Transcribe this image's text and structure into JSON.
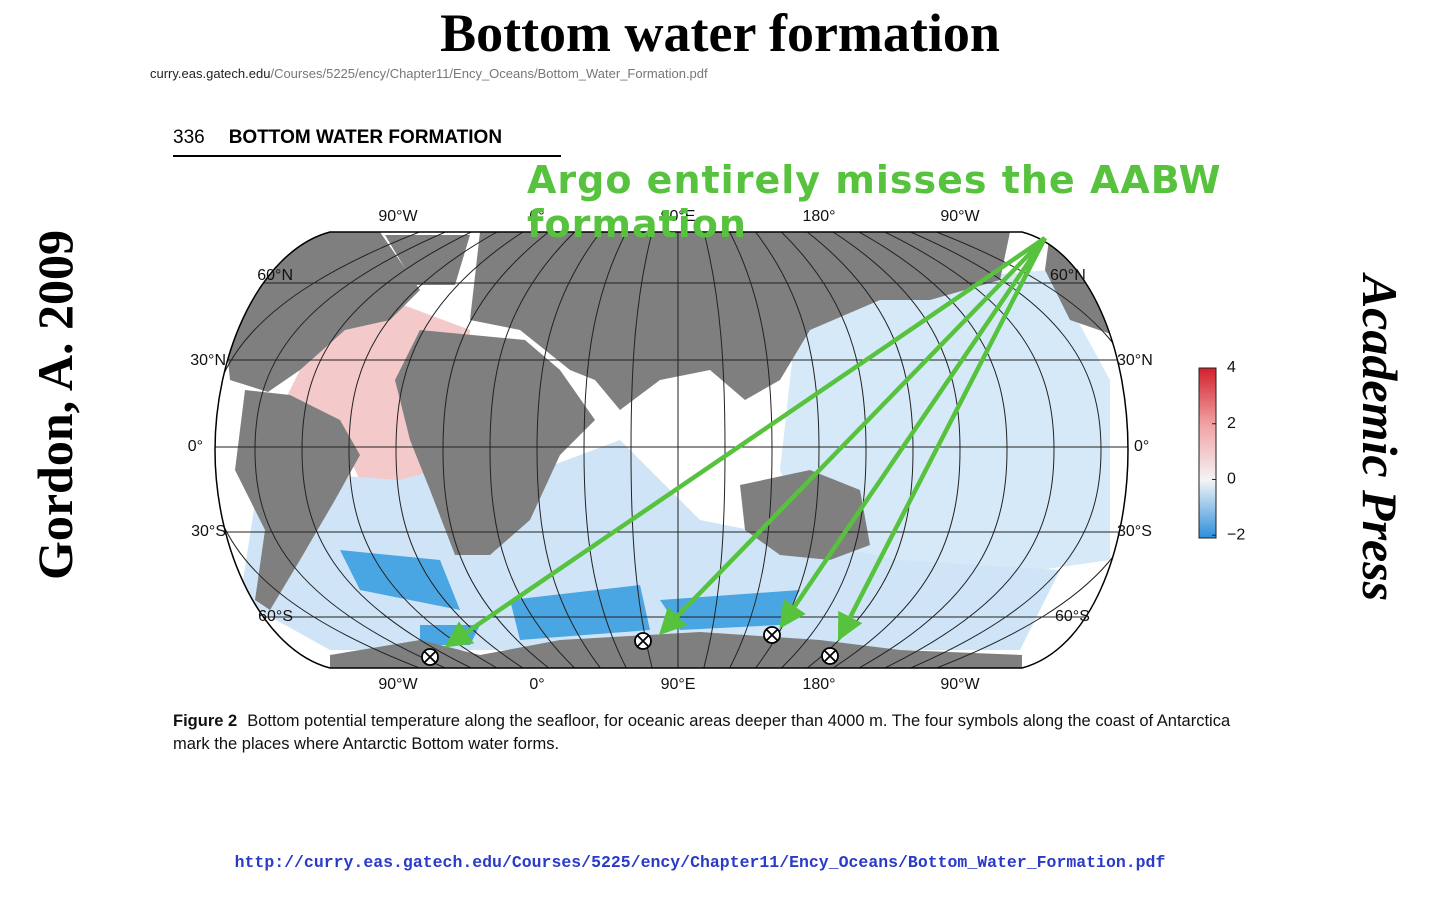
{
  "title": "Bottom water formation",
  "source": {
    "host": "curry.eas.gatech.edu",
    "path": "/Courses/5225/ency/Chapter11/Ency_Oceans/Bottom_Water_Formation.pdf"
  },
  "side_left": "Gordon, A. 2009",
  "side_right": "Academic Press",
  "page_header": {
    "number": "336",
    "title": "BOTTOM WATER FORMATION"
  },
  "annotation": "Argo entirely misses the AABW formation",
  "map": {
    "longitude_labels": [
      "90°W",
      "0°",
      "90°E",
      "180°",
      "90°W"
    ],
    "latitude_labels": [
      "60°N",
      "30°N",
      "0°",
      "30°S",
      "60°S"
    ],
    "colorbar": {
      "lim": [
        -2.1,
        4.0
      ],
      "ticks": [
        4,
        2,
        0,
        {
          "value": -2,
          "label": "−2"
        }
      ]
    }
  },
  "figure": {
    "label": "Figure 2",
    "caption": "Bottom potential temperature along the seafloor, for oceanic areas deeper than 4000 m. The four symbols along the coast of Antarctica mark the places where Antarctic Bottom water forms."
  },
  "footer_url": "http://curry.eas.gatech.edu/Courses/5225/ency/Chapter11/Ency_Oceans/Bottom_Water_Formation.pdf"
}
